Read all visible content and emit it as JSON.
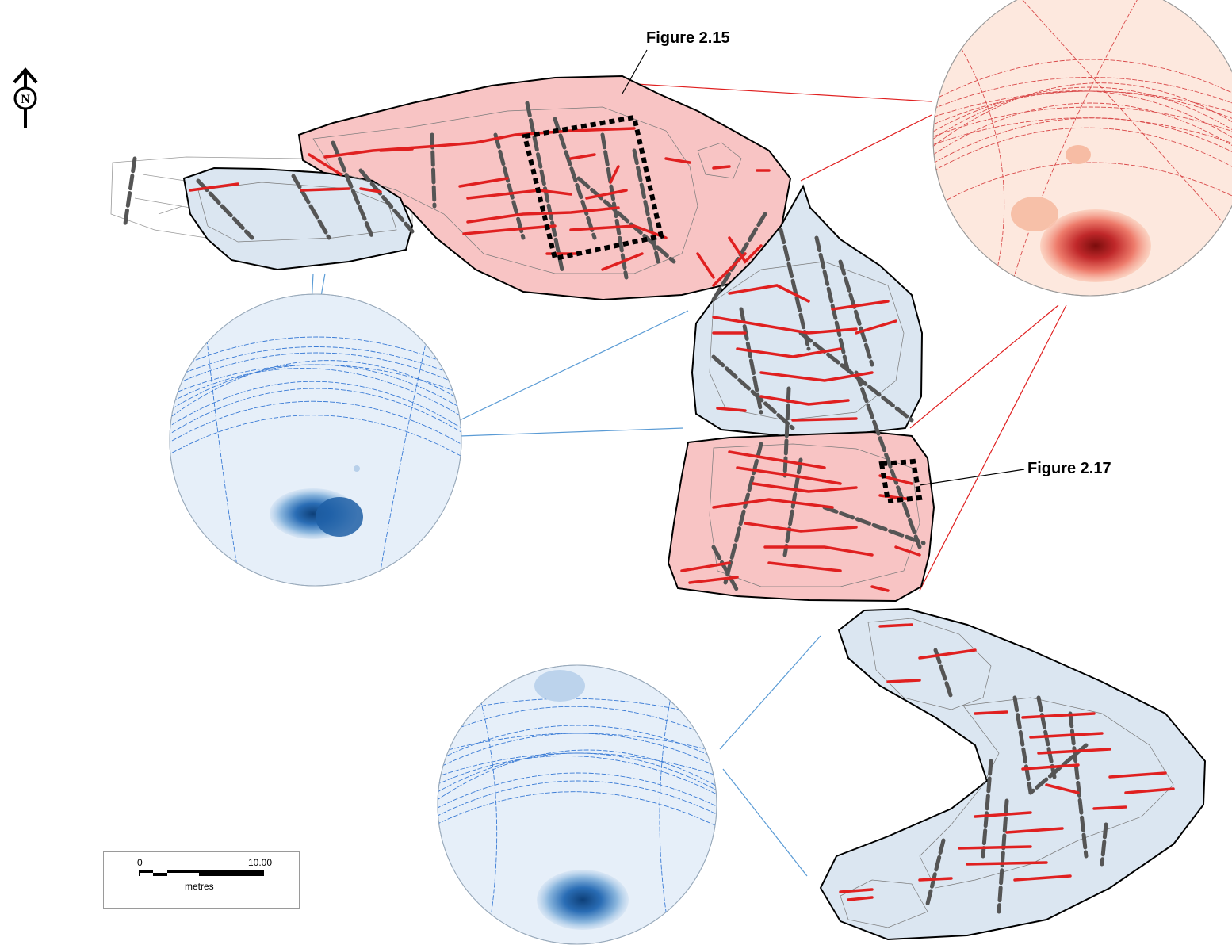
{
  "figure_labels": {
    "fig_2_15": "Figure 2.15",
    "fig_2_17": "Figure 2.17"
  },
  "north_arrow": {
    "letter": "N",
    "icon": "north-arrow-icon"
  },
  "scale_bar": {
    "start": "0",
    "end": "10.00",
    "unit": "metres"
  },
  "colors": {
    "red_domain_fill": "#f8c4c4",
    "blue_domain_fill": "#dbe6f1",
    "fracture_red": "#e02020",
    "fracture_grey": "#555555",
    "stereonet_red_bg": "#fde8de",
    "stereonet_blue_bg": "#e6eff9",
    "great_circle_red": "#d94a4a",
    "great_circle_blue": "#3a7bd5",
    "tie_line_red": "#e02020",
    "tie_line_blue": "#5a9bd5"
  },
  "stereonets": [
    {
      "name": "red-stereonet",
      "domain": "red"
    },
    {
      "name": "blue-stereonet-left",
      "domain": "blue"
    },
    {
      "name": "blue-stereonet-bottom",
      "domain": "blue"
    }
  ]
}
